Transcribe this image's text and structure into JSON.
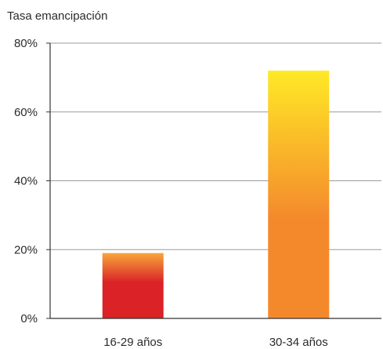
{
  "chart_data": {
    "type": "bar",
    "ylabel": "Tasa emancipación",
    "categories": [
      "16-29 años",
      "30-34 años"
    ],
    "values": [
      19,
      72
    ],
    "ylim": [
      0,
      80
    ],
    "yticks": [
      0,
      20,
      40,
      60,
      80
    ],
    "ytick_labels": [
      "0%",
      "20%",
      "40%",
      "60%",
      "80%"
    ],
    "grid": true,
    "legend": "none",
    "colors": {
      "bar1_top": "#F7A63A",
      "bar1_bottom": "#DA2227",
      "bar2_top": "#FFE926",
      "bar2_bottom": "#F4892C",
      "axis": "#333333",
      "grid": "#9a9a9a"
    }
  }
}
